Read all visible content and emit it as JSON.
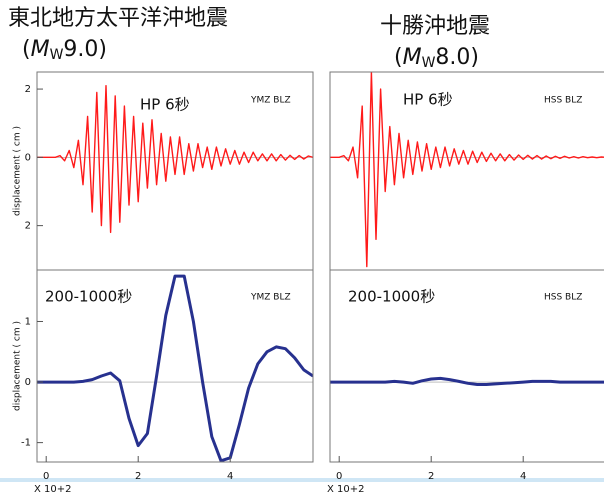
{
  "headings": [
    {
      "title": "東北地方太平洋沖地震",
      "magnitude": [
        "(",
        "M",
        "W",
        "9.0)"
      ]
    },
    {
      "title": "十勝沖地震",
      "magnitude": [
        "(",
        "M",
        "W",
        "8.0)"
      ]
    }
  ],
  "chart_data": [
    {
      "type": "line",
      "color": "#ff1a1a",
      "annotations": [
        "HP 6秒",
        "YMZ  BLZ"
      ],
      "ylabel": "displacement ( cm )",
      "xlim": [
        -0.2,
        5.8
      ],
      "ylim": [
        -3.3,
        2.5
      ],
      "yticks": [
        {
          "value": 2,
          "label": "2"
        },
        0,
        {
          "value": -2,
          "label": "2"
        }
      ],
      "x": [
        -0.2,
        -0.1,
        0,
        0.1,
        0.2,
        0.3,
        0.4,
        0.5,
        0.6,
        0.7,
        0.8,
        0.9,
        1.0,
        1.1,
        1.2,
        1.3,
        1.4,
        1.5,
        1.6,
        1.7,
        1.8,
        1.9,
        2.0,
        2.1,
        2.2,
        2.3,
        2.4,
        2.5,
        2.6,
        2.7,
        2.8,
        2.9,
        3.0,
        3.1,
        3.2,
        3.3,
        3.4,
        3.5,
        3.6,
        3.7,
        3.8,
        3.9,
        4.0,
        4.1,
        4.2,
        4.3,
        4.4,
        4.5,
        4.6,
        4.7,
        4.8,
        4.9,
        5.0,
        5.1,
        5.2,
        5.3,
        5.4,
        5.5,
        5.6,
        5.7,
        5.8
      ],
      "values": [
        0,
        0,
        0,
        0,
        0,
        0.05,
        -0.1,
        0.2,
        -0.3,
        0.5,
        -0.8,
        1.2,
        -1.6,
        1.9,
        -2.0,
        2.1,
        -2.2,
        1.8,
        -1.9,
        1.5,
        -1.4,
        1.2,
        -1.3,
        1.0,
        -0.9,
        1.1,
        -0.8,
        0.7,
        -0.7,
        0.6,
        -0.5,
        0.6,
        -0.5,
        0.4,
        -0.4,
        0.4,
        -0.3,
        0.3,
        -0.35,
        0.3,
        -0.25,
        0.25,
        -0.2,
        0.2,
        -0.2,
        0.15,
        -0.15,
        0.15,
        -0.1,
        0.1,
        -0.1,
        0.1,
        -0.1,
        0.08,
        -0.08,
        0.06,
        -0.06,
        0.05,
        -0.05,
        0.04,
        0
      ]
    },
    {
      "type": "line",
      "color": "#ff1a1a",
      "annotations": [
        "HP 6秒",
        "HSS  BLZ"
      ],
      "xlim": [
        -0.2,
        5.8
      ],
      "ylim": [
        -3.3,
        2.5
      ],
      "x": [
        -0.2,
        -0.1,
        0,
        0.1,
        0.2,
        0.3,
        0.4,
        0.5,
        0.6,
        0.7,
        0.8,
        0.9,
        1.0,
        1.1,
        1.2,
        1.3,
        1.4,
        1.5,
        1.6,
        1.7,
        1.8,
        1.9,
        2.0,
        2.1,
        2.2,
        2.3,
        2.4,
        2.5,
        2.6,
        2.7,
        2.8,
        2.9,
        3.0,
        3.1,
        3.2,
        3.3,
        3.4,
        3.5,
        3.6,
        3.7,
        3.8,
        3.9,
        4.0,
        4.1,
        4.2,
        4.3,
        4.4,
        4.5,
        4.6,
        4.7,
        4.8,
        4.9,
        5.0,
        5.1,
        5.2,
        5.3,
        5.4,
        5.5,
        5.6,
        5.7,
        5.8
      ],
      "values": [
        0,
        0,
        0,
        0.05,
        -0.1,
        0.3,
        -0.6,
        1.5,
        -3.2,
        2.5,
        -2.4,
        2.0,
        -1.0,
        0.9,
        -0.8,
        0.7,
        -0.6,
        0.5,
        -0.5,
        0.45,
        -0.4,
        0.4,
        -0.35,
        0.3,
        -0.3,
        0.3,
        -0.25,
        0.25,
        -0.2,
        0.2,
        -0.2,
        0.18,
        -0.15,
        0.15,
        -0.12,
        0.12,
        -0.1,
        0.1,
        -0.1,
        0.08,
        -0.08,
        0.07,
        -0.06,
        0.06,
        -0.05,
        0.05,
        -0.05,
        0.04,
        -0.04,
        0.03,
        -0.03,
        0.03,
        -0.02,
        0.02,
        -0.02,
        0.02,
        -0.01,
        0.01,
        -0.01,
        0.01,
        0
      ]
    },
    {
      "type": "line",
      "color": "#27318f",
      "annotations": [
        "200-1000秒",
        "YMZ  BLZ"
      ],
      "ylabel": "displacement ( cm )",
      "xlabel": "X 10+2",
      "xlim": [
        -0.2,
        5.8
      ],
      "ylim": [
        -1.32,
        1.85
      ],
      "xticks": [
        0,
        2,
        4
      ],
      "yticks": [
        1,
        0,
        -1
      ],
      "x": [
        -0.2,
        0,
        0.2,
        0.4,
        0.6,
        0.8,
        1.0,
        1.2,
        1.4,
        1.6,
        1.8,
        2.0,
        2.2,
        2.4,
        2.6,
        2.8,
        3.0,
        3.2,
        3.4,
        3.6,
        3.8,
        4.0,
        4.2,
        4.4,
        4.6,
        4.8,
        5.0,
        5.2,
        5.4,
        5.6,
        5.8
      ],
      "values": [
        0,
        0,
        0,
        0,
        0,
        0.01,
        0.04,
        0.1,
        0.15,
        0.02,
        -0.6,
        -1.05,
        -0.85,
        0.1,
        1.1,
        1.75,
        1.75,
        1.0,
        0.0,
        -0.9,
        -1.3,
        -1.25,
        -0.7,
        -0.1,
        0.3,
        0.5,
        0.58,
        0.55,
        0.4,
        0.2,
        0.1
      ]
    },
    {
      "type": "line",
      "color": "#27318f",
      "annotations": [
        "200-1000秒",
        "HSS  BLZ"
      ],
      "xlabel": "X 10+2",
      "xlim": [
        -0.2,
        5.8
      ],
      "ylim": [
        -1.32,
        1.85
      ],
      "xticks": [
        0,
        2,
        4
      ],
      "x": [
        -0.2,
        0,
        0.2,
        0.4,
        0.6,
        0.8,
        1.0,
        1.2,
        1.4,
        1.6,
        1.8,
        2.0,
        2.2,
        2.4,
        2.6,
        2.8,
        3.0,
        3.2,
        3.4,
        3.6,
        3.8,
        4.0,
        4.2,
        4.4,
        4.6,
        4.8,
        5.0,
        5.2,
        5.4,
        5.6,
        5.8
      ],
      "values": [
        0,
        0,
        0,
        0,
        0,
        0,
        0,
        0.01,
        0,
        -0.02,
        0.02,
        0.05,
        0.06,
        0.04,
        0.01,
        -0.02,
        -0.04,
        -0.04,
        -0.03,
        -0.02,
        -0.01,
        0,
        0.01,
        0.01,
        0.01,
        0,
        0,
        0,
        0,
        0,
        0
      ]
    }
  ]
}
